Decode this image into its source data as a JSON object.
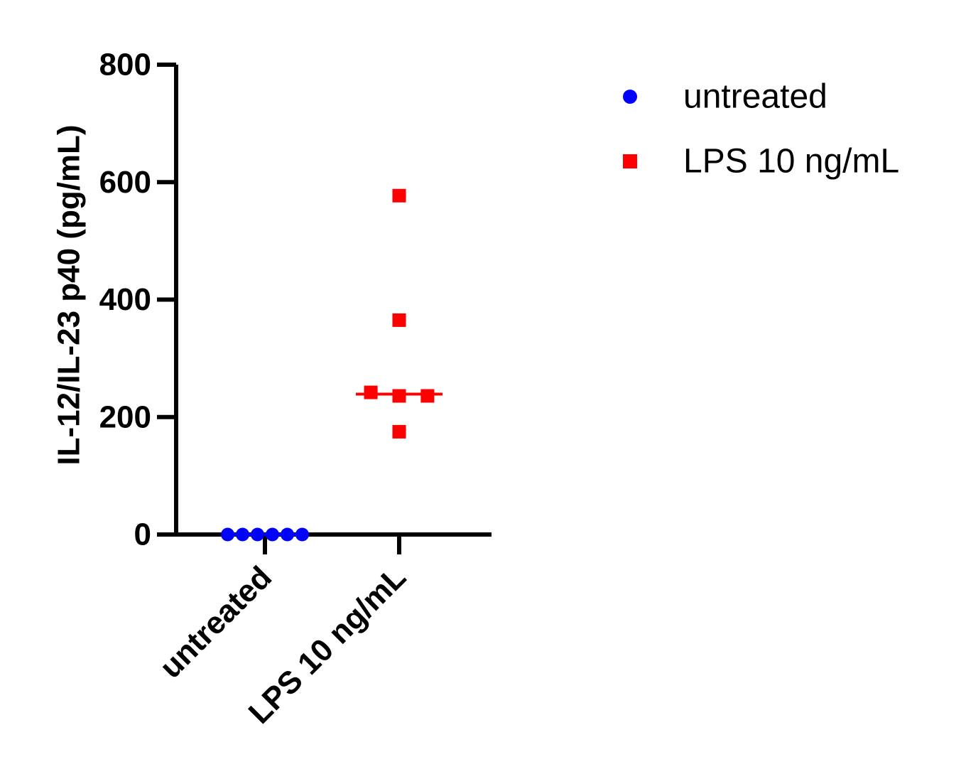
{
  "chart_data": {
    "type": "scatter",
    "ylabel": "IL-12/IL-23 p40 (pg/mL)",
    "xlabel": "",
    "ylim": [
      0,
      800
    ],
    "yticks": [
      0,
      200,
      400,
      600,
      800
    ],
    "categories": [
      "untreated",
      "LPS 10 ng/mL"
    ],
    "series": [
      {
        "name": "untreated",
        "category": "untreated",
        "marker": "circle",
        "color": "#0000ff",
        "values": [
          0,
          0,
          0,
          0,
          0,
          0
        ],
        "median": 0
      },
      {
        "name": "LPS 10 ng/mL",
        "category": "LPS 10 ng/mL",
        "marker": "square",
        "color": "#ff0000",
        "values": [
          577,
          365,
          242,
          236,
          236,
          175
        ],
        "median": 239
      }
    ],
    "legend": {
      "position": "top-right",
      "items": [
        "untreated",
        "LPS 10 ng/mL"
      ]
    },
    "grid": false
  }
}
